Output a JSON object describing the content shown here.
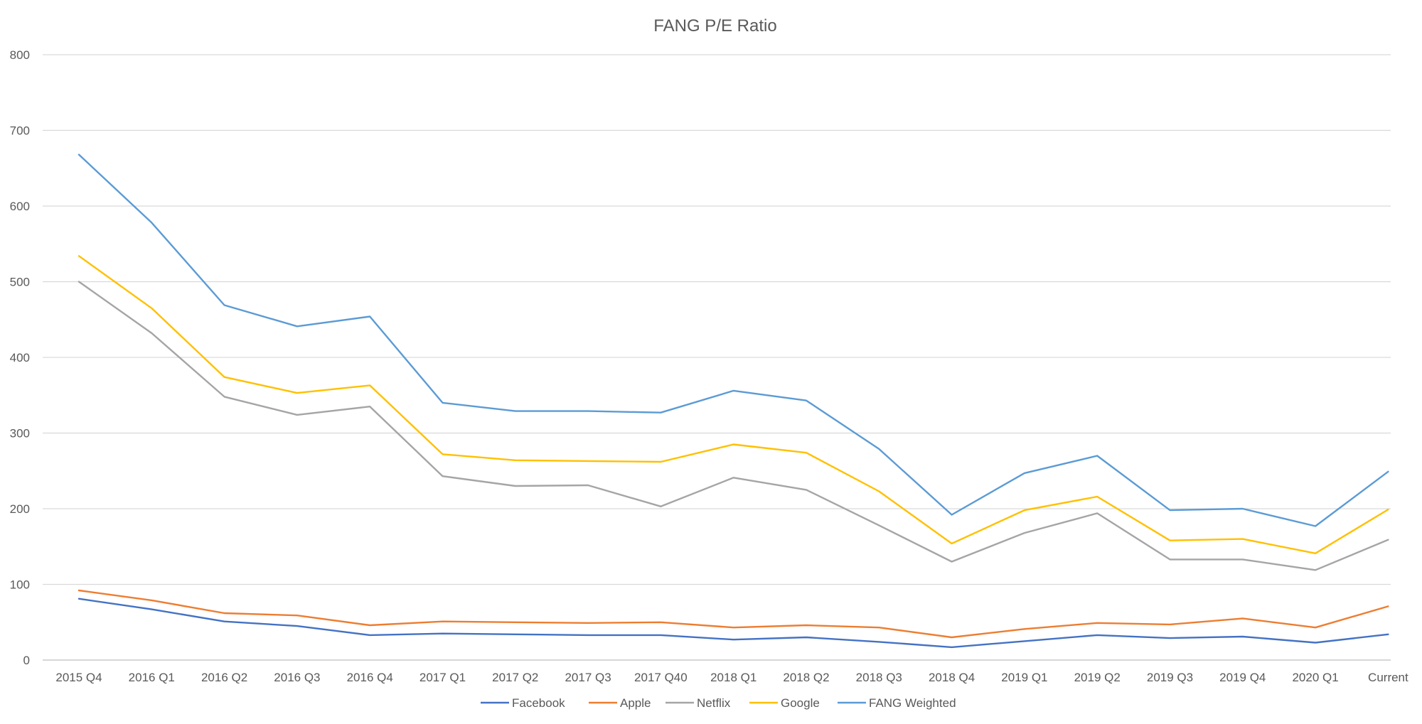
{
  "chart_data": {
    "type": "line",
    "title": "FANG P/E Ratio",
    "xlabel": "",
    "ylabel": "",
    "ylim": [
      0,
      800
    ],
    "yticks": [
      0,
      100,
      200,
      300,
      400,
      500,
      600,
      700,
      800
    ],
    "grid": "horizontal",
    "legend_position": "bottom",
    "categories": [
      "2015 Q4",
      "2016 Q1",
      "2016 Q2",
      "2016 Q3",
      "2016 Q4",
      "2017 Q1",
      "2017 Q2",
      "2017 Q3",
      "2017 Q40",
      "2018 Q1",
      "2018 Q2",
      "2018 Q3",
      "2018 Q4",
      "2019 Q1",
      "2019 Q2",
      "2019 Q3",
      "2019 Q4",
      "2020 Q1",
      "Current"
    ],
    "series": [
      {
        "name": "Facebook",
        "color": "#4472C4",
        "values": [
          81,
          67,
          51,
          45,
          33,
          35,
          34,
          33,
          33,
          27,
          30,
          24,
          17,
          25,
          33,
          29,
          31,
          23,
          34
        ]
      },
      {
        "name": "Apple",
        "color": "#ED7D31",
        "values": [
          92,
          79,
          62,
          59,
          46,
          51,
          50,
          49,
          50,
          43,
          46,
          43,
          30,
          41,
          49,
          47,
          55,
          43,
          71
        ]
      },
      {
        "name": "Netflix",
        "color": "#A5A5A5",
        "values": [
          500,
          432,
          348,
          324,
          335,
          243,
          230,
          231,
          203,
          241,
          225,
          178,
          130,
          168,
          194,
          133,
          133,
          119,
          159
        ]
      },
      {
        "name": "Google",
        "color": "#FFC000",
        "values": [
          534,
          465,
          374,
          353,
          363,
          272,
          264,
          263,
          262,
          285,
          274,
          223,
          154,
          198,
          216,
          158,
          160,
          141,
          199
        ]
      },
      {
        "name": "FANG Weighted",
        "color": "#5B9BD5",
        "values": [
          668,
          578,
          469,
          441,
          454,
          340,
          329,
          329,
          327,
          356,
          343,
          279,
          192,
          247,
          270,
          198,
          200,
          177,
          249
        ]
      }
    ]
  }
}
